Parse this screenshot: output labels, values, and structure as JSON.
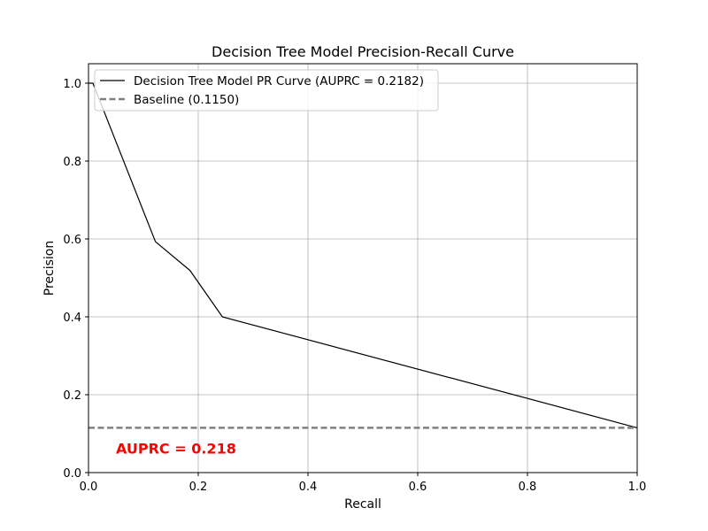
{
  "chart_data": {
    "type": "line",
    "title": "Decision Tree Model Precision-Recall Curve",
    "xlabel": "Recall",
    "ylabel": "Precision",
    "xlim": [
      0.0,
      1.0
    ],
    "ylim": [
      0.0,
      1.05
    ],
    "x_ticks": [
      "0.0",
      "0.2",
      "0.4",
      "0.6",
      "0.8",
      "1.0"
    ],
    "y_ticks": [
      "0.0",
      "0.2",
      "0.4",
      "0.6",
      "0.8",
      "1.0"
    ],
    "grid": true,
    "legend_position": "top-left",
    "series": [
      {
        "name": "Decision Tree Model PR Curve (AUPRC = 0.2182)",
        "color": "#000000",
        "style": "solid",
        "x": [
          0.0,
          0.008,
          0.122,
          0.185,
          0.244,
          1.0
        ],
        "y": [
          1.0,
          1.0,
          0.593,
          0.519,
          0.4,
          0.115
        ]
      },
      {
        "name": "Baseline (0.1150)",
        "color": "#808080",
        "style": "dashed",
        "x": [
          0.0,
          1.0
        ],
        "y": [
          0.115,
          0.115
        ]
      }
    ],
    "annotation": {
      "text": "AUPRC = 0.218",
      "x": 0.05,
      "y": 0.06,
      "color": "#ff0000"
    }
  }
}
